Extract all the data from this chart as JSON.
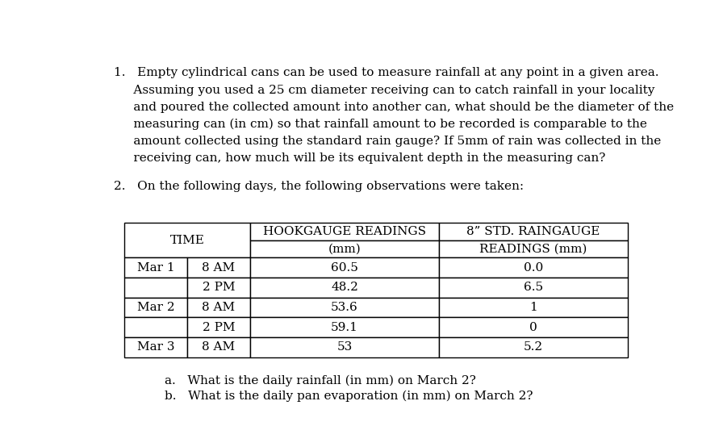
{
  "background_color": "#ffffff",
  "para1_lines": [
    "1.   Empty cylindrical cans can be used to measure rainfall at any point in a given area.",
    "     Assuming you used a 25 cm diameter receiving can to catch rainfall in your locality",
    "     and poured the collected amount into another can, what should be the diameter of the",
    "     measuring can (in cm) so that rainfall amount to be recorded is comparable to the",
    "     amount collected using the standard rain gauge? If 5mm of rain was collected in the",
    "     receiving can, how much will be its equivalent depth in the measuring can?"
  ],
  "para2": "2.   On the following days, the following observations were taken:",
  "header_row1": [
    "TIME",
    "HOOKGAUGE READINGS",
    "8” STD. RAINGAUGE"
  ],
  "header_row2": [
    "",
    "(mm)",
    "READINGS (mm)"
  ],
  "table_data": [
    [
      "Mar 1",
      "8 AM",
      "60.5",
      "0.0"
    ],
    [
      "",
      "2 PM",
      "48.2",
      "6.5"
    ],
    [
      "Mar 2",
      "8 AM",
      "53.6",
      "1"
    ],
    [
      "",
      "2 PM",
      "59.1",
      "0"
    ],
    [
      "Mar 3",
      "8 AM",
      "53",
      "5.2"
    ]
  ],
  "questions": [
    "a.   What is the daily rainfall (in mm) on March 2?",
    "b.   What is the daily pan evaporation (in mm) on March 2?"
  ],
  "font_size_body": 11.0,
  "font_size_table": 11.0,
  "font_family": "DejaVu Serif",
  "text_color": "#000000"
}
